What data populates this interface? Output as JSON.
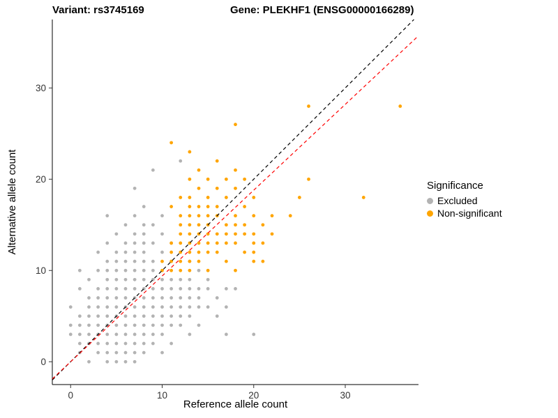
{
  "titles": {
    "variant": "Variant: rs3745169",
    "gene": "Gene: PLEKHF1 (ENSG00000166289)"
  },
  "legend": {
    "title": "Significance"
  },
  "chart_data": {
    "type": "scatter",
    "title": "Variant: rs3745169 / Gene: PLEKHF1 (ENSG00000166289)",
    "xlabel": "Reference allele count",
    "ylabel": "Alternative allele count",
    "xlim": [
      -2,
      38
    ],
    "ylim": [
      -2.5,
      37.5
    ],
    "x_ticks": [
      0,
      10,
      20,
      30
    ],
    "y_ticks": [
      0,
      10,
      20,
      30
    ],
    "grid": false,
    "legend_position": "right",
    "point_radius": 2.4,
    "series": [
      {
        "name": "Excluded",
        "color": "#b3b3b3",
        "points": [
          [
            2,
            0
          ],
          [
            4,
            0
          ],
          [
            5,
            0
          ],
          [
            6,
            0
          ],
          [
            7,
            0
          ],
          [
            1,
            1
          ],
          [
            3,
            1
          ],
          [
            4,
            1
          ],
          [
            5,
            1
          ],
          [
            6,
            1
          ],
          [
            7,
            1
          ],
          [
            8,
            1
          ],
          [
            10,
            1
          ],
          [
            1,
            2
          ],
          [
            2,
            2
          ],
          [
            3,
            2
          ],
          [
            4,
            2
          ],
          [
            5,
            2
          ],
          [
            6,
            2
          ],
          [
            7,
            2
          ],
          [
            8,
            2
          ],
          [
            9,
            2
          ],
          [
            11,
            2
          ],
          [
            0,
            3
          ],
          [
            1,
            3
          ],
          [
            2,
            3
          ],
          [
            3,
            3
          ],
          [
            4,
            3
          ],
          [
            5,
            3
          ],
          [
            6,
            3
          ],
          [
            7,
            3
          ],
          [
            8,
            3
          ],
          [
            9,
            3
          ],
          [
            10,
            3
          ],
          [
            13,
            3
          ],
          [
            17,
            3
          ],
          [
            20,
            3
          ],
          [
            0,
            4
          ],
          [
            1,
            4
          ],
          [
            2,
            4
          ],
          [
            3,
            4
          ],
          [
            4,
            4
          ],
          [
            5,
            4
          ],
          [
            6,
            4
          ],
          [
            7,
            4
          ],
          [
            8,
            4
          ],
          [
            9,
            4
          ],
          [
            10,
            4
          ],
          [
            11,
            4
          ],
          [
            12,
            4
          ],
          [
            14,
            4
          ],
          [
            1,
            5
          ],
          [
            2,
            5
          ],
          [
            3,
            5
          ],
          [
            4,
            5
          ],
          [
            5,
            5
          ],
          [
            6,
            5
          ],
          [
            7,
            5
          ],
          [
            8,
            5
          ],
          [
            9,
            5
          ],
          [
            10,
            5
          ],
          [
            11,
            5
          ],
          [
            12,
            5
          ],
          [
            13,
            5
          ],
          [
            16,
            5
          ],
          [
            0,
            6
          ],
          [
            2,
            6
          ],
          [
            3,
            6
          ],
          [
            4,
            6
          ],
          [
            5,
            6
          ],
          [
            6,
            6
          ],
          [
            7,
            6
          ],
          [
            8,
            6
          ],
          [
            9,
            6
          ],
          [
            10,
            6
          ],
          [
            11,
            6
          ],
          [
            12,
            6
          ],
          [
            13,
            6
          ],
          [
            14,
            6
          ],
          [
            15,
            6
          ],
          [
            17,
            6
          ],
          [
            2,
            7
          ],
          [
            3,
            7
          ],
          [
            4,
            7
          ],
          [
            5,
            7
          ],
          [
            6,
            7
          ],
          [
            7,
            7
          ],
          [
            8,
            7
          ],
          [
            9,
            7
          ],
          [
            10,
            7
          ],
          [
            11,
            7
          ],
          [
            12,
            7
          ],
          [
            13,
            7
          ],
          [
            14,
            7
          ],
          [
            16,
            7
          ],
          [
            1,
            8
          ],
          [
            3,
            8
          ],
          [
            4,
            8
          ],
          [
            5,
            8
          ],
          [
            6,
            8
          ],
          [
            7,
            8
          ],
          [
            8,
            8
          ],
          [
            9,
            8
          ],
          [
            10,
            8
          ],
          [
            11,
            8
          ],
          [
            12,
            8
          ],
          [
            13,
            8
          ],
          [
            14,
            8
          ],
          [
            15,
            8
          ],
          [
            17,
            8
          ],
          [
            18,
            8
          ],
          [
            2,
            9
          ],
          [
            4,
            9
          ],
          [
            5,
            9
          ],
          [
            6,
            9
          ],
          [
            7,
            9
          ],
          [
            8,
            9
          ],
          [
            9,
            9
          ],
          [
            10,
            9
          ],
          [
            11,
            9
          ],
          [
            12,
            9
          ],
          [
            13,
            9
          ],
          [
            15,
            9
          ],
          [
            1,
            10
          ],
          [
            3,
            10
          ],
          [
            4,
            10
          ],
          [
            5,
            10
          ],
          [
            6,
            10
          ],
          [
            7,
            10
          ],
          [
            8,
            10
          ],
          [
            9,
            10
          ],
          [
            14,
            10
          ],
          [
            4,
            11
          ],
          [
            5,
            11
          ],
          [
            6,
            11
          ],
          [
            7,
            11
          ],
          [
            8,
            11
          ],
          [
            9,
            11
          ],
          [
            13,
            11
          ],
          [
            3,
            12
          ],
          [
            5,
            12
          ],
          [
            6,
            12
          ],
          [
            7,
            12
          ],
          [
            8,
            12
          ],
          [
            10,
            12
          ],
          [
            4,
            13
          ],
          [
            6,
            13
          ],
          [
            7,
            13
          ],
          [
            8,
            13
          ],
          [
            9,
            13
          ],
          [
            11,
            13
          ],
          [
            5,
            14
          ],
          [
            7,
            14
          ],
          [
            8,
            14
          ],
          [
            10,
            14
          ],
          [
            6,
            15
          ],
          [
            8,
            15
          ],
          [
            9,
            15
          ],
          [
            4,
            16
          ],
          [
            7,
            16
          ],
          [
            10,
            16
          ],
          [
            8,
            17
          ],
          [
            7,
            19
          ],
          [
            9,
            21
          ],
          [
            12,
            22
          ]
        ]
      },
      {
        "name": "Non-significant",
        "color": "#FFA500",
        "points": [
          [
            10,
            10
          ],
          [
            11,
            10
          ],
          [
            12,
            10
          ],
          [
            13,
            10
          ],
          [
            15,
            10
          ],
          [
            18,
            10
          ],
          [
            10,
            11
          ],
          [
            11,
            11
          ],
          [
            12,
            11
          ],
          [
            13,
            11
          ],
          [
            14,
            11
          ],
          [
            17,
            11
          ],
          [
            20,
            11
          ],
          [
            21,
            11
          ],
          [
            11,
            12
          ],
          [
            12,
            12
          ],
          [
            13,
            12
          ],
          [
            14,
            12
          ],
          [
            15,
            12
          ],
          [
            16,
            12
          ],
          [
            19,
            12
          ],
          [
            20,
            12
          ],
          [
            11,
            13
          ],
          [
            12,
            13
          ],
          [
            13,
            13
          ],
          [
            14,
            13
          ],
          [
            15,
            13
          ],
          [
            16,
            13
          ],
          [
            17,
            13
          ],
          [
            18,
            13
          ],
          [
            20,
            13
          ],
          [
            21,
            13
          ],
          [
            12,
            14
          ],
          [
            13,
            14
          ],
          [
            14,
            14
          ],
          [
            15,
            14
          ],
          [
            16,
            14
          ],
          [
            17,
            14
          ],
          [
            18,
            14
          ],
          [
            19,
            14
          ],
          [
            20,
            14
          ],
          [
            22,
            14
          ],
          [
            12,
            15
          ],
          [
            13,
            15
          ],
          [
            14,
            15
          ],
          [
            15,
            15
          ],
          [
            17,
            15
          ],
          [
            18,
            15
          ],
          [
            19,
            15
          ],
          [
            21,
            15
          ],
          [
            12,
            16
          ],
          [
            13,
            16
          ],
          [
            14,
            16
          ],
          [
            15,
            16
          ],
          [
            16,
            16
          ],
          [
            18,
            16
          ],
          [
            20,
            16
          ],
          [
            22,
            16
          ],
          [
            24,
            16
          ],
          [
            11,
            17
          ],
          [
            13,
            17
          ],
          [
            14,
            17
          ],
          [
            15,
            17
          ],
          [
            16,
            17
          ],
          [
            19,
            17
          ],
          [
            12,
            18
          ],
          [
            13,
            18
          ],
          [
            15,
            18
          ],
          [
            17,
            18
          ],
          [
            20,
            18
          ],
          [
            25,
            18
          ],
          [
            32,
            18
          ],
          [
            14,
            19
          ],
          [
            16,
            19
          ],
          [
            18,
            19
          ],
          [
            13,
            20
          ],
          [
            15,
            20
          ],
          [
            17,
            20
          ],
          [
            19,
            20
          ],
          [
            26,
            20
          ],
          [
            14,
            21
          ],
          [
            18,
            21
          ],
          [
            16,
            22
          ],
          [
            13,
            23
          ],
          [
            11,
            24
          ],
          [
            18,
            26
          ],
          [
            26,
            28
          ],
          [
            36,
            28
          ]
        ]
      }
    ],
    "lines": [
      {
        "name": "identity",
        "slope": 1,
        "intercept": 0,
        "color": "#000000",
        "style": "dashed"
      },
      {
        "name": "regression",
        "slope": 0.94,
        "intercept": 0,
        "color": "#FF0000",
        "style": "dashed"
      }
    ]
  }
}
